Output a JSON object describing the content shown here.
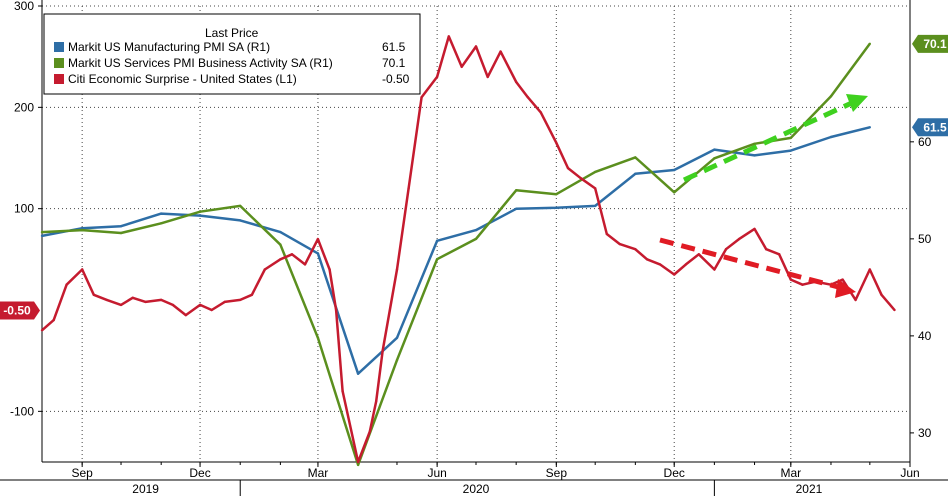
{
  "chart_data": {
    "type": "line",
    "title": "",
    "legend": {
      "header": "Last Price",
      "placement": "top-left",
      "items": [
        {
          "label": "Markit US Manufacturing PMI SA  (R1)",
          "value": "61.5",
          "color": "#2e6ea6"
        },
        {
          "label": "Markit US Services PMI Business Activity SA  (R1)",
          "value": "70.1",
          "color": "#5b8f1e"
        },
        {
          "label": "Citi Economic Surprise - United States  (L1)",
          "value": "-0.50",
          "color": "#c51b2f"
        }
      ]
    },
    "left_axis": {
      "ticks": [
        "300",
        "200",
        "100",
        "-100"
      ],
      "ylim": [
        -150,
        300
      ]
    },
    "right_axis": {
      "ticks": [
        "60",
        "50",
        "40",
        "30"
      ],
      "ylim": [
        27,
        74
      ]
    },
    "x_axis": {
      "month_ticks": [
        "Sep",
        "Dec",
        "Mar",
        "Jun",
        "Sep",
        "Dec",
        "Mar",
        "Jun"
      ],
      "year_labels": [
        "2019",
        "2020",
        "2021"
      ]
    },
    "badges": [
      {
        "text": "70.1",
        "color": "#5b8f1e",
        "axis": "right",
        "value": 70.1
      },
      {
        "text": "61.5",
        "color": "#2e6ea6",
        "axis": "right",
        "value": 61.5
      },
      {
        "text": "-0.50",
        "color": "#c51b2f",
        "axis": "left",
        "value": -0.5
      }
    ],
    "grid": true,
    "series": [
      {
        "name": "Markit US Manufacturing PMI SA  (R1)",
        "axis": "right",
        "color": "#2e6ea6",
        "x": [
          "2019-08-01",
          "2019-09-01",
          "2019-10-01",
          "2019-11-01",
          "2019-12-01",
          "2020-01-01",
          "2020-02-01",
          "2020-03-01",
          "2020-04-01",
          "2020-05-01",
          "2020-06-01",
          "2020-07-01",
          "2020-08-01",
          "2020-09-01",
          "2020-10-01",
          "2020-11-01",
          "2020-12-01",
          "2021-01-01",
          "2021-02-01",
          "2021-03-01",
          "2021-04-01",
          "2021-05-01"
        ],
        "y": [
          50.3,
          51.1,
          51.3,
          52.6,
          52.4,
          51.9,
          50.7,
          48.5,
          36.1,
          39.8,
          49.8,
          50.9,
          53.1,
          53.2,
          53.4,
          56.7,
          57.1,
          59.2,
          58.6,
          59.1,
          60.5,
          61.5
        ]
      },
      {
        "name": "Markit US Services PMI Business Activity SA  (R1)",
        "axis": "right",
        "color": "#5b8f1e",
        "x": [
          "2019-08-01",
          "2019-09-01",
          "2019-10-01",
          "2019-11-01",
          "2019-12-01",
          "2020-01-01",
          "2020-02-01",
          "2020-03-01",
          "2020-04-01",
          "2020-05-01",
          "2020-06-01",
          "2020-07-01",
          "2020-08-01",
          "2020-09-01",
          "2020-10-01",
          "2020-11-01",
          "2020-12-01",
          "2021-01-01",
          "2021-02-01",
          "2021-03-01",
          "2021-04-01",
          "2021-05-01"
        ],
        "y": [
          50.7,
          50.9,
          50.6,
          51.6,
          52.8,
          53.4,
          49.4,
          39.8,
          26.7,
          37.5,
          47.9,
          50.0,
          55.0,
          54.6,
          56.9,
          58.4,
          54.8,
          58.3,
          59.8,
          60.4,
          64.7,
          70.1
        ]
      },
      {
        "name": "Citi Economic Surprise - United States  (L1)",
        "axis": "left",
        "color": "#c51b2f",
        "x": [
          "2019-08-01",
          "2019-08-10",
          "2019-08-20",
          "2019-09-01",
          "2019-09-10",
          "2019-09-20",
          "2019-10-01",
          "2019-10-10",
          "2019-10-20",
          "2019-11-01",
          "2019-11-10",
          "2019-11-20",
          "2019-12-01",
          "2019-12-10",
          "2019-12-20",
          "2020-01-01",
          "2020-01-10",
          "2020-01-20",
          "2020-02-01",
          "2020-02-10",
          "2020-02-20",
          "2020-03-01",
          "2020-03-10",
          "2020-03-15",
          "2020-03-20",
          "2020-04-01",
          "2020-04-10",
          "2020-04-15",
          "2020-04-20",
          "2020-05-01",
          "2020-05-10",
          "2020-05-20",
          "2020-06-01",
          "2020-06-10",
          "2020-06-20",
          "2020-07-01",
          "2020-07-10",
          "2020-07-20",
          "2020-08-01",
          "2020-08-10",
          "2020-08-20",
          "2020-09-01",
          "2020-09-10",
          "2020-09-20",
          "2020-10-01",
          "2020-10-10",
          "2020-10-20",
          "2020-11-01",
          "2020-11-10",
          "2020-11-20",
          "2020-12-01",
          "2020-12-10",
          "2020-12-20",
          "2021-01-01",
          "2021-01-10",
          "2021-01-20",
          "2021-02-01",
          "2021-02-10",
          "2021-02-20",
          "2021-03-01",
          "2021-03-10",
          "2021-03-20",
          "2021-04-01",
          "2021-04-10",
          "2021-04-20",
          "2021-05-01",
          "2021-05-10",
          "2021-05-20"
        ],
        "y": [
          -20,
          -10,
          25,
          40,
          15,
          10,
          5,
          12,
          8,
          10,
          5,
          -5,
          5,
          0,
          8,
          10,
          15,
          40,
          50,
          55,
          45,
          70,
          40,
          0,
          -80,
          -150,
          -120,
          -90,
          -40,
          40,
          120,
          210,
          230,
          270,
          240,
          260,
          230,
          255,
          225,
          210,
          195,
          165,
          140,
          130,
          120,
          75,
          65,
          60,
          50,
          45,
          35,
          45,
          55,
          40,
          60,
          70,
          80,
          60,
          55,
          30,
          25,
          28,
          25,
          30,
          10,
          40,
          15,
          0
        ]
      }
    ]
  }
}
